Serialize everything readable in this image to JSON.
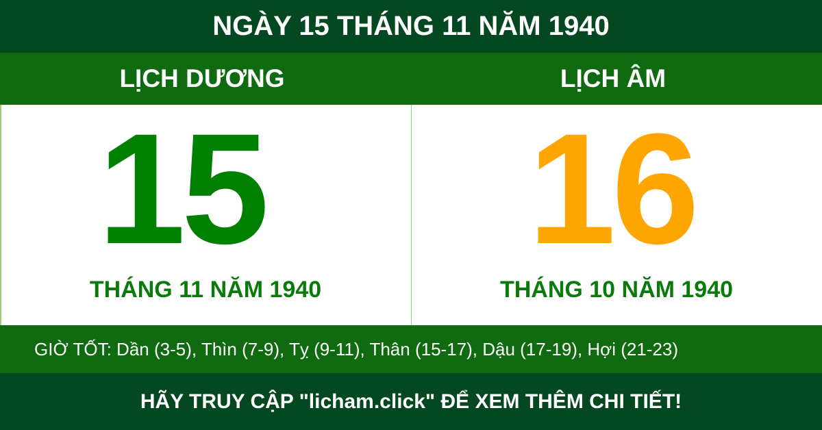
{
  "title": "NGÀY 15 THÁNG 11 NĂM 1940",
  "solar": {
    "label": "LỊCH DƯƠNG",
    "day": "15",
    "month_year": "THÁNG 11 NĂM 1940",
    "color": "#008000"
  },
  "lunar": {
    "label": "LỊCH ÂM",
    "day": "16",
    "month_year": "THÁNG 10 NĂM 1940",
    "color": "#ffa500"
  },
  "good_hours": "GIỜ TỐT: Dần (3-5), Thìn (7-9), Tỵ (9-11), Thân (15-17), Dậu (17-19), Hợi (21-23)",
  "footer": "HÃY TRUY CẬP \"licham.click\" ĐỂ XEM THÊM CHI TIẾT!",
  "colors": {
    "dark_green": "#044821",
    "green": "#106b10"
  }
}
